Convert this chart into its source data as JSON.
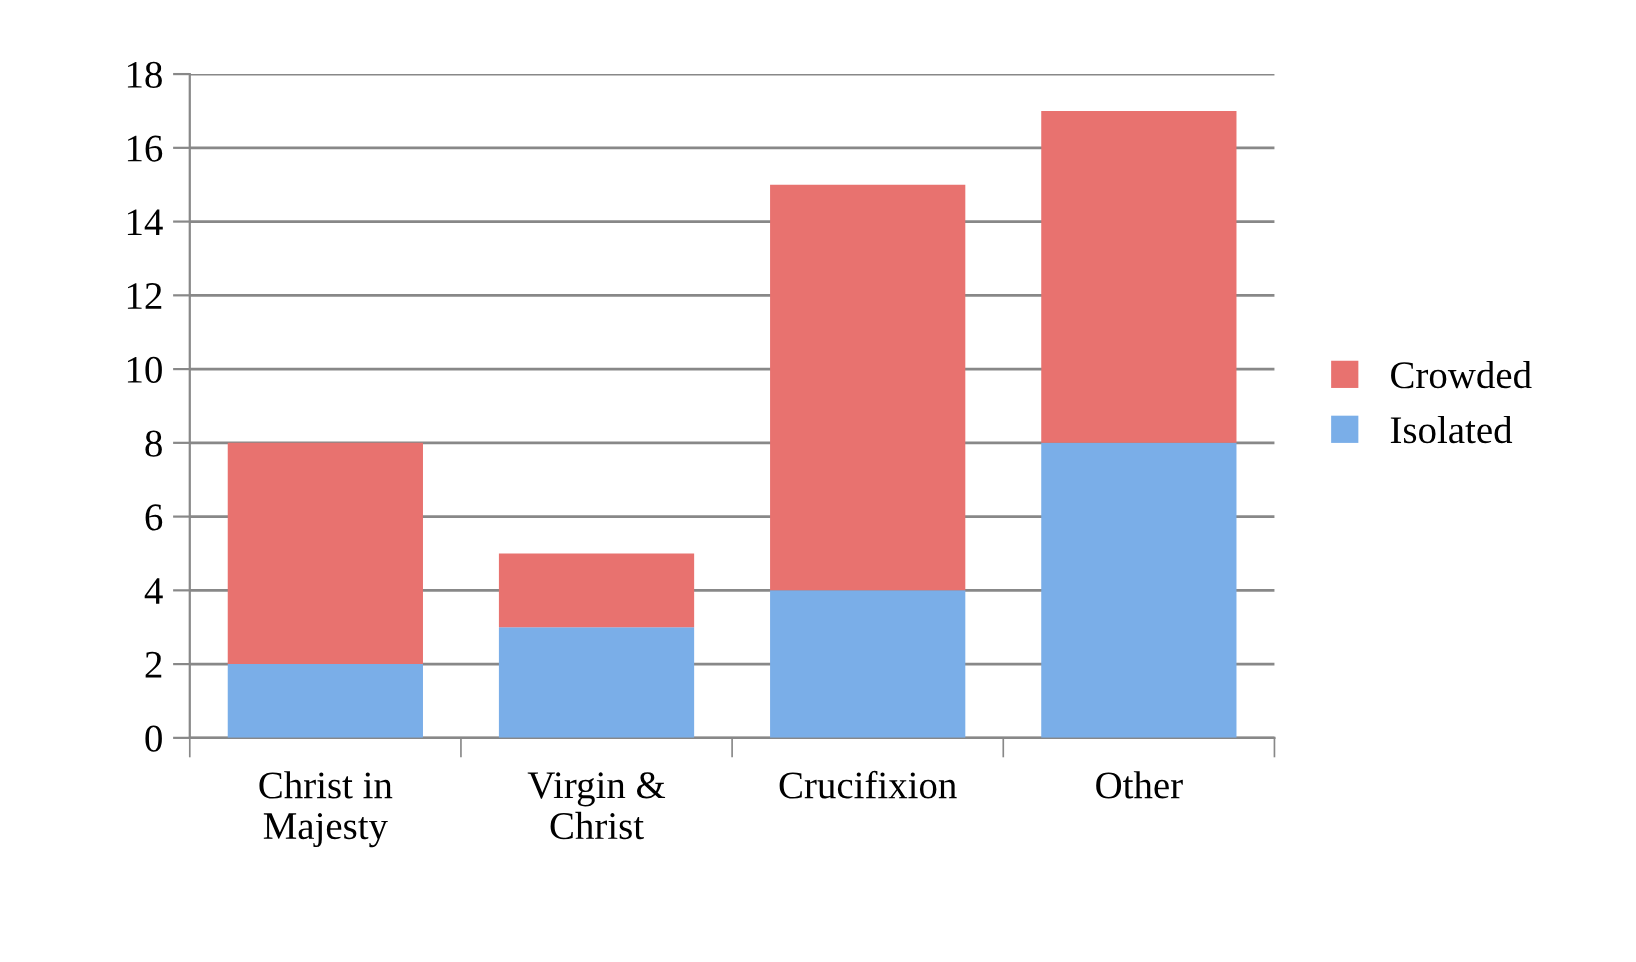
{
  "chart_data": {
    "type": "bar",
    "stacked": true,
    "categories": [
      "Christ in\nMajesty",
      "Virgin &\nChrist",
      "Crucifixion",
      "Other"
    ],
    "series": [
      {
        "name": "Isolated",
        "color": "#7aaee8",
        "values": [
          2,
          3,
          4,
          8
        ]
      },
      {
        "name": "Crowded",
        "color": "#e8726f",
        "values": [
          6,
          2,
          11,
          9
        ]
      }
    ],
    "ylim": [
      0,
      18
    ],
    "yticks": [
      0,
      2,
      4,
      6,
      8,
      10,
      12,
      14,
      16,
      18
    ],
    "grid": "y",
    "legend": "right"
  }
}
